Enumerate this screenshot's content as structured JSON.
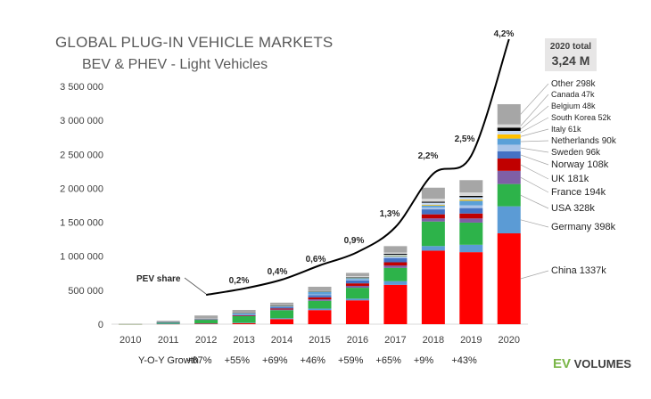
{
  "chart_data": {
    "type": "bar",
    "title": "GLOBAL PLUG-IN VEHICLE MARKETS",
    "subtitle": "BEV & PHEV - Light Vehicles",
    "categories": [
      "2010",
      "2011",
      "2012",
      "2013",
      "2014",
      "2015",
      "2016",
      "2017",
      "2018",
      "2019",
      "2020"
    ],
    "ylim": [
      0,
      3500000
    ],
    "yticks": [
      "0",
      "500 000",
      "1 000 000",
      "1 500 000",
      "2 000 000",
      "2 500 000",
      "3 000 000",
      "3 500 000"
    ],
    "stacked": true,
    "series": [
      {
        "name": "China",
        "color": "#ff0000",
        "values": [
          1000,
          5000,
          10000,
          15000,
          75000,
          207000,
          351000,
          579000,
          1082000,
          1060000,
          1337000
        ]
      },
      {
        "name": "Germany",
        "color": "#5b9bd5",
        "values": [
          0,
          2000,
          3000,
          6000,
          13000,
          23000,
          25000,
          55000,
          68000,
          109000,
          398000
        ]
      },
      {
        "name": "USA",
        "color": "#2db34a",
        "values": [
          1000,
          17000,
          52000,
          97000,
          118000,
          114000,
          160000,
          195000,
          361000,
          326000,
          328000
        ]
      },
      {
        "name": "France",
        "color": "#7f5fa6",
        "values": [
          0,
          2000,
          5000,
          9000,
          11000,
          22000,
          28000,
          35000,
          46000,
          61000,
          194000
        ]
      },
      {
        "name": "UK",
        "color": "#c00000",
        "values": [
          0,
          1000,
          2000,
          4000,
          15000,
          29000,
          37000,
          47000,
          60000,
          73000,
          181000
        ]
      },
      {
        "name": "Norway",
        "color": "#4472c4",
        "values": [
          0,
          2000,
          4000,
          8000,
          20000,
          34000,
          45000,
          62000,
          73000,
          80000,
          108000
        ]
      },
      {
        "name": "Sweden",
        "color": "#a9c4e8",
        "values": [
          0,
          0,
          1000,
          2000,
          5000,
          9000,
          13000,
          20000,
          29000,
          41000,
          96000
        ]
      },
      {
        "name": "Netherlands",
        "color": "#5aa0d8",
        "values": [
          0,
          1000,
          5000,
          22000,
          15000,
          43000,
          24000,
          11000,
          28000,
          67000,
          90000
        ]
      },
      {
        "name": "Italy",
        "color": "#ffc000",
        "values": [
          0,
          0,
          0,
          0,
          1000,
          2000,
          2000,
          5000,
          10000,
          17000,
          61000
        ]
      },
      {
        "name": "South Korea",
        "color": "#c6d9f1",
        "values": [
          0,
          0,
          0,
          1000,
          1000,
          3000,
          5000,
          14000,
          31000,
          35000,
          52000
        ]
      },
      {
        "name": "Belgium",
        "color": "#000000",
        "values": [
          0,
          0,
          0,
          1000,
          2000,
          3000,
          6000,
          14000,
          14000,
          19000,
          48000
        ]
      },
      {
        "name": "Canada",
        "color": "#d9d9d9",
        "values": [
          0,
          0,
          2000,
          3000,
          5000,
          7000,
          12000,
          18000,
          44000,
          51000,
          47000
        ]
      },
      {
        "name": "Other",
        "color": "#a6a6a6",
        "values": [
          2000,
          20000,
          44000,
          42000,
          36000,
          55000,
          47000,
          94000,
          163000,
          181000,
          298000
        ]
      }
    ],
    "legend_labels": [
      "Other 298k",
      "Canada 47k",
      "Belgium 48k",
      "South Korea 52k",
      "Italy 61k",
      "Netherlands 90k",
      "Sweden 96k",
      "Norway 108k",
      "UK 181k",
      "France 194k",
      "USA 328k",
      "Germany 398k",
      "China 1337k"
    ],
    "pev_share": {
      "label": "PEV share",
      "years": [
        "2012",
        "2013",
        "2014",
        "2015",
        "2016",
        "2017",
        "2018",
        "2019",
        "2020"
      ],
      "labels": [
        "0,2%",
        "0,4%",
        "0,6%",
        "0,9%",
        "1,3%",
        "2,2%",
        "2,5%",
        "4,2%"
      ],
      "label_years": [
        "2013",
        "2014",
        "2015",
        "2016",
        "2017",
        "2018",
        "2019",
        "2020"
      ]
    },
    "growth": {
      "label": "Y-O-Y Growth",
      "values": [
        "+67%",
        "+55%",
        "+69%",
        "+46%",
        "+59%",
        "+65%",
        "+9%",
        "+43%"
      ]
    },
    "total": {
      "label": "2020 total",
      "value": "3,24 M"
    }
  },
  "logo": {
    "ev": "EV",
    "text": "VOLUMES"
  }
}
